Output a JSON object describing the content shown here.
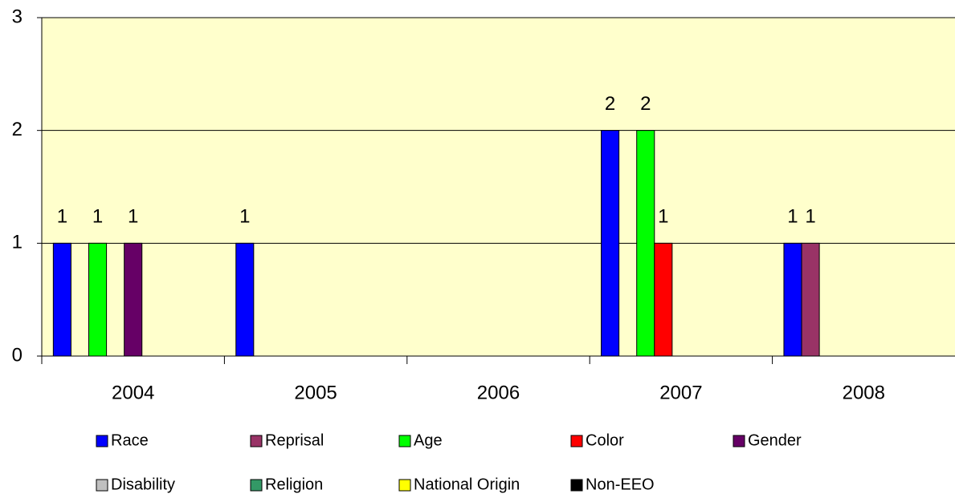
{
  "chart_data": {
    "type": "bar",
    "categories": [
      "2004",
      "2005",
      "2006",
      "2007",
      "2008"
    ],
    "series": [
      {
        "name": "Race",
        "color": "#0000ff",
        "values": [
          1,
          1,
          0,
          2,
          1
        ]
      },
      {
        "name": "Reprisal",
        "color": "#993366",
        "values": [
          0,
          0,
          0,
          0,
          1
        ]
      },
      {
        "name": "Age",
        "color": "#00ff00",
        "values": [
          1,
          0,
          0,
          2,
          0
        ]
      },
      {
        "name": "Color",
        "color": "#ff0000",
        "values": [
          0,
          0,
          0,
          1,
          0
        ]
      },
      {
        "name": "Gender",
        "color": "#660066",
        "values": [
          1,
          0,
          0,
          0,
          0
        ]
      },
      {
        "name": "Disability",
        "color": "#c0c0c0",
        "values": [
          0,
          0,
          0,
          0,
          0
        ]
      },
      {
        "name": "Religion",
        "color": "#339966",
        "values": [
          0,
          0,
          0,
          0,
          0
        ]
      },
      {
        "name": "National Origin",
        "color": "#ffff00",
        "values": [
          0,
          0,
          0,
          0,
          0
        ]
      },
      {
        "name": "Non-EEO",
        "color": "#000000",
        "values": [
          0,
          0,
          0,
          0,
          0
        ]
      }
    ],
    "ylim": [
      0,
      3
    ],
    "yticks": [
      0,
      1,
      2,
      3
    ],
    "grid": true,
    "legend": "bottom",
    "background": "#ffffcc"
  }
}
